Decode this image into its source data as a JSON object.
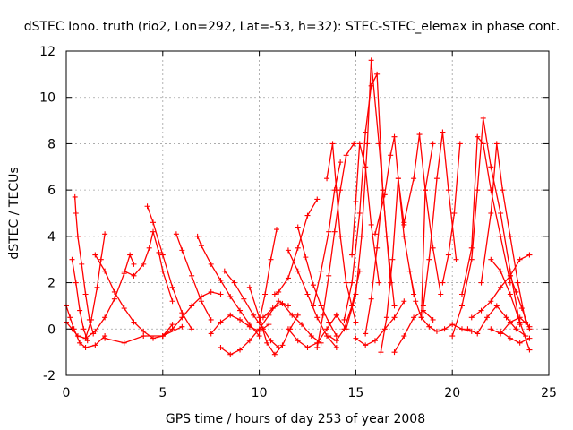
{
  "chart_data": {
    "type": "scatter",
    "title": "dSTEC Iono. truth (rio2, Lon=292, Lat=-53, h=32): STEC-STEC_elemax in phase cont.",
    "xlabel": "GPS time / hours of day 253 of year 2008",
    "ylabel": "dSTEC  / TECUs",
    "xlim": [
      0,
      25
    ],
    "ylim": [
      -2,
      12
    ],
    "x_ticks": [
      0,
      5,
      10,
      15,
      20,
      25
    ],
    "y_ticks": [
      -2,
      0,
      2,
      4,
      6,
      8,
      10,
      12
    ],
    "x_tick_labels": [
      "0",
      "5",
      "10",
      "15",
      "20",
      "25"
    ],
    "y_tick_labels": [
      "-2",
      "0",
      "2",
      "4",
      "6",
      "8",
      "10",
      "12"
    ],
    "grid": true,
    "marker": "+",
    "color": "#ff0000",
    "series": [
      {
        "x": [
          0.0,
          0.2,
          0.4,
          0.7,
          1.0,
          1.5,
          2.0
        ],
        "y": [
          1.0,
          0.5,
          0.0,
          -0.6,
          -0.8,
          -0.7,
          -0.3
        ]
      },
      {
        "x": [
          0.0,
          0.3,
          0.6,
          1.0,
          1.3,
          1.6,
          1.8,
          2.0
        ],
        "y": [
          0.3,
          0.0,
          -0.3,
          -0.4,
          0.4,
          1.8,
          3.0,
          4.1
        ]
      },
      {
        "x": [
          0.45,
          0.5,
          0.6,
          0.8,
          1.0,
          1.2,
          1.4
        ],
        "y": [
          5.7,
          5.0,
          4.0,
          2.8,
          1.5,
          0.4,
          -0.2
        ]
      },
      {
        "x": [
          0.3,
          0.5,
          0.7,
          0.9,
          1.1
        ],
        "y": [
          3.0,
          2.0,
          0.8,
          0.0,
          -0.5
        ]
      },
      {
        "x": [
          1.0,
          1.5,
          2.0,
          2.5,
          3.0,
          3.3,
          3.5
        ],
        "y": [
          -0.4,
          -0.1,
          0.5,
          1.3,
          2.4,
          3.2,
          2.8
        ]
      },
      {
        "x": [
          1.5,
          2.0,
          2.5,
          3.0,
          3.5,
          4.0,
          4.5,
          5.0,
          5.5
        ],
        "y": [
          3.2,
          2.5,
          1.6,
          0.9,
          0.3,
          -0.1,
          -0.4,
          -0.3,
          0.2
        ]
      },
      {
        "x": [
          3.0,
          3.5,
          4.0,
          4.3,
          4.5,
          4.8,
          5.0,
          5.5
        ],
        "y": [
          2.5,
          2.3,
          2.8,
          3.5,
          4.2,
          3.3,
          2.5,
          1.2
        ]
      },
      {
        "x": [
          4.2,
          4.5,
          5.0,
          5.5,
          6.0,
          6.5
        ],
        "y": [
          5.3,
          4.6,
          3.2,
          1.8,
          0.7,
          0.0
        ]
      },
      {
        "x": [
          2.0,
          3.0,
          4.0,
          5.0,
          6.0
        ],
        "y": [
          -0.4,
          -0.6,
          -0.3,
          -0.3,
          0.1
        ]
      },
      {
        "x": [
          5.0,
          5.5,
          6.0,
          6.5,
          7.0,
          7.5,
          8.0
        ],
        "y": [
          -0.3,
          0.0,
          0.5,
          1.0,
          1.4,
          1.6,
          1.5
        ]
      },
      {
        "x": [
          5.7,
          6.0,
          6.5,
          7.0,
          7.5
        ],
        "y": [
          4.1,
          3.4,
          2.3,
          1.2,
          0.4
        ]
      },
      {
        "x": [
          6.8,
          7.0,
          7.5,
          8.0,
          8.5,
          9.0,
          9.5,
          10.0
        ],
        "y": [
          4.0,
          3.6,
          2.8,
          2.1,
          1.4,
          0.8,
          0.2,
          -0.3
        ]
      },
      {
        "x": [
          7.5,
          8.0,
          8.5,
          9.0,
          9.5,
          10.0,
          10.5
        ],
        "y": [
          -0.2,
          0.3,
          0.6,
          0.4,
          0.1,
          -0.1,
          0.2
        ]
      },
      {
        "x": [
          8.0,
          8.5,
          9.0,
          9.5,
          10.0,
          10.5,
          11.0,
          11.5
        ],
        "y": [
          -0.8,
          -1.1,
          -0.9,
          -0.5,
          0.0,
          0.6,
          1.2,
          1.0
        ]
      },
      {
        "x": [
          8.2,
          8.7,
          9.2,
          9.7,
          10.2,
          10.6,
          11.0
        ],
        "y": [
          2.5,
          2.0,
          1.3,
          0.6,
          0.0,
          -0.5,
          -0.8
        ]
      },
      {
        "x": [
          9.5,
          10.0,
          10.4,
          10.8,
          11.2,
          11.6,
          12.0
        ],
        "y": [
          1.8,
          0.5,
          -0.6,
          -1.1,
          -0.7,
          0.0,
          0.6
        ]
      },
      {
        "x": [
          10.0,
          10.3,
          10.6,
          10.9
        ],
        "y": [
          0.3,
          1.5,
          3.0,
          4.3
        ]
      },
      {
        "x": [
          10.2,
          10.7,
          11.2,
          11.7,
          12.2,
          12.7,
          13.2
        ],
        "y": [
          0.5,
          0.9,
          1.1,
          0.6,
          0.2,
          -0.3,
          -0.6
        ]
      },
      {
        "x": [
          10.8,
          11.0,
          11.5,
          12.0,
          12.5,
          13.0
        ],
        "y": [
          1.5,
          1.6,
          2.2,
          3.5,
          4.9,
          5.6
        ]
      },
      {
        "x": [
          11.5,
          12.0,
          12.5,
          13.0,
          13.5,
          14.0
        ],
        "y": [
          3.4,
          2.5,
          1.5,
          0.5,
          -0.3,
          -0.8
        ]
      },
      {
        "x": [
          11.5,
          12.0,
          12.5,
          13.0,
          13.5,
          14.0
        ],
        "y": [
          0.0,
          -0.5,
          -0.8,
          -0.6,
          0.0,
          0.6
        ]
      },
      {
        "x": [
          12.0,
          12.4,
          12.8,
          13.2,
          13.6,
          14.0
        ],
        "y": [
          4.4,
          3.1,
          1.9,
          1.0,
          0.3,
          -0.3
        ]
      },
      {
        "x": [
          13.0,
          13.3,
          13.6,
          13.9,
          14.2,
          14.5,
          14.9
        ],
        "y": [
          -0.8,
          0.6,
          2.3,
          4.2,
          6.0,
          7.5,
          8.0
        ]
      },
      {
        "x": [
          12.8,
          13.2,
          13.6,
          13.9,
          14.2
        ],
        "y": [
          1.0,
          2.5,
          4.2,
          6.0,
          7.2
        ]
      },
      {
        "x": [
          13.5,
          13.8,
          14.0,
          14.2,
          14.5,
          15.0
        ],
        "y": [
          6.5,
          8.0,
          6.0,
          4.0,
          2.0,
          0.3
        ]
      },
      {
        "x": [
          13.6,
          14.0,
          14.4,
          14.8,
          15.2
        ],
        "y": [
          -0.3,
          -0.5,
          0.0,
          1.0,
          2.5
        ]
      },
      {
        "x": [
          14.0,
          14.5,
          15.0,
          15.3,
          15.6,
          15.8,
          16.2,
          16.6,
          17.0
        ],
        "y": [
          0.6,
          0.0,
          1.5,
          4.0,
          8.0,
          11.6,
          8.0,
          4.0,
          1.0
        ]
      },
      {
        "x": [
          14.4,
          14.8,
          15.2,
          15.5,
          15.8,
          16.1,
          16.4,
          16.8
        ],
        "y": [
          0.4,
          2.0,
          5.0,
          8.5,
          10.5,
          11.0,
          6.0,
          2.0
        ]
      },
      {
        "x": [
          14.8,
          15.0,
          15.2,
          15.5,
          15.8,
          16.2
        ],
        "y": [
          3.2,
          5.5,
          8.0,
          7.0,
          4.5,
          2.0
        ]
      },
      {
        "x": [
          15.0,
          15.5,
          16.0,
          16.5,
          17.0,
          17.5
        ],
        "y": [
          -0.4,
          -0.7,
          -0.5,
          0.0,
          0.5,
          1.2
        ]
      },
      {
        "x": [
          15.5,
          15.8,
          16.1,
          16.4
        ],
        "y": [
          -0.2,
          1.3,
          3.5,
          6.0
        ]
      },
      {
        "x": [
          16.0,
          16.5,
          16.8,
          17.0,
          17.2,
          17.5,
          18.0
        ],
        "y": [
          4.1,
          5.8,
          7.5,
          8.3,
          6.5,
          4.0,
          1.5
        ]
      },
      {
        "x": [
          16.3,
          16.6,
          16.9,
          17.2,
          17.5
        ],
        "y": [
          -1.0,
          0.5,
          3.0,
          6.5,
          4.5
        ]
      },
      {
        "x": [
          17.0,
          17.5,
          18.0,
          18.5,
          19.0
        ],
        "y": [
          -1.0,
          -0.3,
          0.5,
          0.8,
          0.4
        ]
      },
      {
        "x": [
          17.5,
          18.0,
          18.3,
          18.6,
          19.0,
          19.4
        ],
        "y": [
          4.6,
          6.5,
          8.4,
          6.0,
          3.5,
          1.5
        ]
      },
      {
        "x": [
          17.8,
          18.1,
          18.4,
          18.6,
          19.0
        ],
        "y": [
          2.5,
          1.2,
          0.5,
          6.0,
          8.0
        ]
      },
      {
        "x": [
          18.5,
          18.8,
          19.2,
          19.5,
          19.8,
          20.2
        ],
        "y": [
          1.0,
          3.0,
          6.5,
          8.5,
          6.0,
          3.0
        ]
      },
      {
        "x": [
          18.4,
          18.8,
          19.2,
          19.6,
          20.0,
          20.5,
          21.0
        ],
        "y": [
          0.5,
          0.1,
          -0.1,
          0.0,
          0.2,
          0.0,
          -0.1
        ]
      },
      {
        "x": [
          19.5,
          19.8,
          20.1,
          20.4
        ],
        "y": [
          2.0,
          3.2,
          5.0,
          8.0
        ]
      },
      {
        "x": [
          20.0,
          20.5,
          21.0,
          21.3,
          21.6,
          22.0,
          22.5,
          23.0,
          23.5
        ],
        "y": [
          -0.3,
          1.0,
          3.0,
          6.0,
          9.1,
          7.0,
          5.0,
          2.5,
          0.2
        ]
      },
      {
        "x": [
          20.5,
          21.0,
          21.3,
          21.6,
          22.0,
          22.5,
          23.0
        ],
        "y": [
          1.5,
          3.5,
          8.3,
          8.0,
          6.0,
          4.0,
          2.0
        ]
      },
      {
        "x": [
          20.8,
          21.3,
          21.8,
          22.3,
          22.8,
          23.3,
          23.8
        ],
        "y": [
          0.0,
          -0.2,
          0.5,
          1.0,
          0.5,
          0.0,
          -0.3
        ]
      },
      {
        "x": [
          21.5,
          22.0,
          22.3,
          22.6,
          23.0,
          23.4,
          23.8
        ],
        "y": [
          2.0,
          5.0,
          8.0,
          6.0,
          4.0,
          2.0,
          0.3
        ]
      },
      {
        "x": [
          21.0,
          21.5,
          22.0,
          22.5,
          23.0,
          23.5,
          24.0
        ],
        "y": [
          0.5,
          0.8,
          1.2,
          1.8,
          2.3,
          3.0,
          3.2
        ]
      },
      {
        "x": [
          22.0,
          22.5,
          23.0,
          23.5,
          24.0
        ],
        "y": [
          3.0,
          2.5,
          1.5,
          0.3,
          -0.9
        ]
      },
      {
        "x": [
          22.0,
          22.5,
          23.0,
          23.5,
          24.0
        ],
        "y": [
          0.0,
          -0.2,
          0.3,
          0.5,
          0.1
        ]
      },
      {
        "x": [
          23.0,
          23.3,
          23.6,
          24.0
        ],
        "y": [
          2.3,
          1.6,
          0.9,
          0.0
        ]
      },
      {
        "x": [
          22.5,
          23.0,
          23.5,
          24.0
        ],
        "y": [
          -0.1,
          -0.4,
          -0.6,
          -0.4
        ]
      }
    ]
  }
}
